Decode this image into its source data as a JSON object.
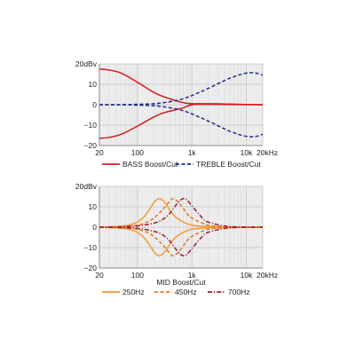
{
  "chart_data": [
    {
      "type": "line",
      "title": "",
      "xlabel": "",
      "ylabel": "",
      "xscale": "log",
      "xlim": [
        20,
        20000
      ],
      "ylim": [
        -20,
        20
      ],
      "xticks": [
        {
          "value": 20,
          "label": "20"
        },
        {
          "value": 100,
          "label": "100"
        },
        {
          "value": 1000,
          "label": "1k"
        },
        {
          "value": 10000,
          "label": "10k"
        },
        {
          "value": 20000,
          "label": "20kHz"
        }
      ],
      "yticks": [
        {
          "value": 20,
          "label": "20dBv"
        },
        {
          "value": 10,
          "label": "10"
        },
        {
          "value": 0,
          "label": "0"
        },
        {
          "value": -10,
          "label": "−10"
        },
        {
          "value": -20,
          "label": "−20"
        }
      ],
      "grid": true,
      "legend_position": "bottom",
      "series": [
        {
          "name": "BASS Boost/Cut",
          "color": "#d7191f",
          "style": "solid",
          "x": [
            20,
            30,
            50,
            100,
            200,
            300,
            500,
            700,
            1000,
            2000,
            5000,
            10000,
            20000
          ],
          "curves": [
            [
              17.5,
              17,
              15.5,
              11,
              6,
              4,
              2,
              1,
              0.5,
              0.5,
              0.3,
              0.1,
              0
            ],
            [
              -16.5,
              -16,
              -14.5,
              -10.5,
              -6,
              -4,
              -2.5,
              -1.5,
              0,
              0.2,
              0.1,
              0.05,
              0
            ]
          ]
        },
        {
          "name": "TREBLE Boost/Cut",
          "color": "#1f2a8a",
          "style": "dashed",
          "x": [
            20,
            50,
            100,
            200,
            300,
            500,
            700,
            1000,
            2000,
            5000,
            10000,
            15000,
            20000
          ],
          "curves": [
            [
              0,
              0,
              0.2,
              0.5,
              1,
              2,
              3,
              4.5,
              8,
              13,
              15.5,
              15.5,
              14.5
            ],
            [
              0,
              0,
              -0.2,
              -0.5,
              -1,
              -2,
              -3,
              -4.5,
              -8,
              -13,
              -15.5,
              -15.5,
              -14.5
            ]
          ]
        }
      ]
    },
    {
      "type": "line",
      "title": "",
      "xlabel": "MID Boost/Cut",
      "ylabel": "",
      "xscale": "log",
      "xlim": [
        20,
        20000
      ],
      "ylim": [
        -20,
        20
      ],
      "xticks": [
        {
          "value": 20,
          "label": "20"
        },
        {
          "value": 100,
          "label": "100"
        },
        {
          "value": 1000,
          "label": "1k"
        },
        {
          "value": 10000,
          "label": "10k"
        },
        {
          "value": 20000,
          "label": "20kHz"
        }
      ],
      "yticks": [
        {
          "value": 20,
          "label": "20dBv"
        },
        {
          "value": 10,
          "label": "10"
        },
        {
          "value": 0,
          "label": "0"
        },
        {
          "value": -10,
          "label": "−10"
        },
        {
          "value": -20,
          "label": "−20"
        }
      ],
      "grid": true,
      "legend_position": "bottom",
      "series": [
        {
          "name": "250Hz",
          "color": "#f39a2e",
          "style": "solid",
          "x": [
            20,
            50,
            80,
            120,
            160,
            200,
            250,
            320,
            400,
            500,
            700,
            1000,
            2000,
            5000,
            20000
          ],
          "curves": [
            [
              0,
              0.5,
              1.5,
              4,
              8,
              12,
              14,
              12,
              8,
              5,
              2.5,
              1,
              0.3,
              0.1,
              0
            ],
            [
              0,
              -0.5,
              -1.5,
              -4,
              -8,
              -12,
              -14,
              -12,
              -8,
              -5,
              -2.5,
              -1,
              -0.3,
              -0.1,
              0
            ]
          ]
        },
        {
          "name": "450Hz",
          "color": "#e8761c",
          "style": "dashed",
          "x": [
            20,
            50,
            100,
            150,
            200,
            300,
            400,
            450,
            500,
            600,
            800,
            1000,
            2000,
            5000,
            20000
          ],
          "curves": [
            [
              0,
              0.3,
              1,
              2.5,
              4.5,
              9,
              13,
              14,
              13.5,
              11.5,
              7,
              4.5,
              1,
              0.2,
              0
            ],
            [
              0,
              -0.3,
              -1,
              -2.5,
              -4.5,
              -9,
              -13,
              -14,
              -13.5,
              -11.5,
              -7,
              -4.5,
              -1,
              -0.2,
              0
            ]
          ]
        },
        {
          "name": "700Hz",
          "color": "#9e1c2e",
          "style": "dashdot",
          "x": [
            20,
            50,
            100,
            200,
            300,
            400,
            500,
            600,
            700,
            800,
            1000,
            1500,
            2000,
            5000,
            20000
          ],
          "curves": [
            [
              0,
              0.2,
              0.6,
              2,
              4,
              7,
              10.5,
              13,
              14,
              13.5,
              10.5,
              5,
              2.5,
              0.3,
              0
            ],
            [
              0,
              -0.2,
              -0.6,
              -2,
              -4,
              -7,
              -10.5,
              -13,
              -14,
              -13.5,
              -10.5,
              -5,
              -2.5,
              -0.3,
              0
            ]
          ]
        }
      ]
    }
  ]
}
